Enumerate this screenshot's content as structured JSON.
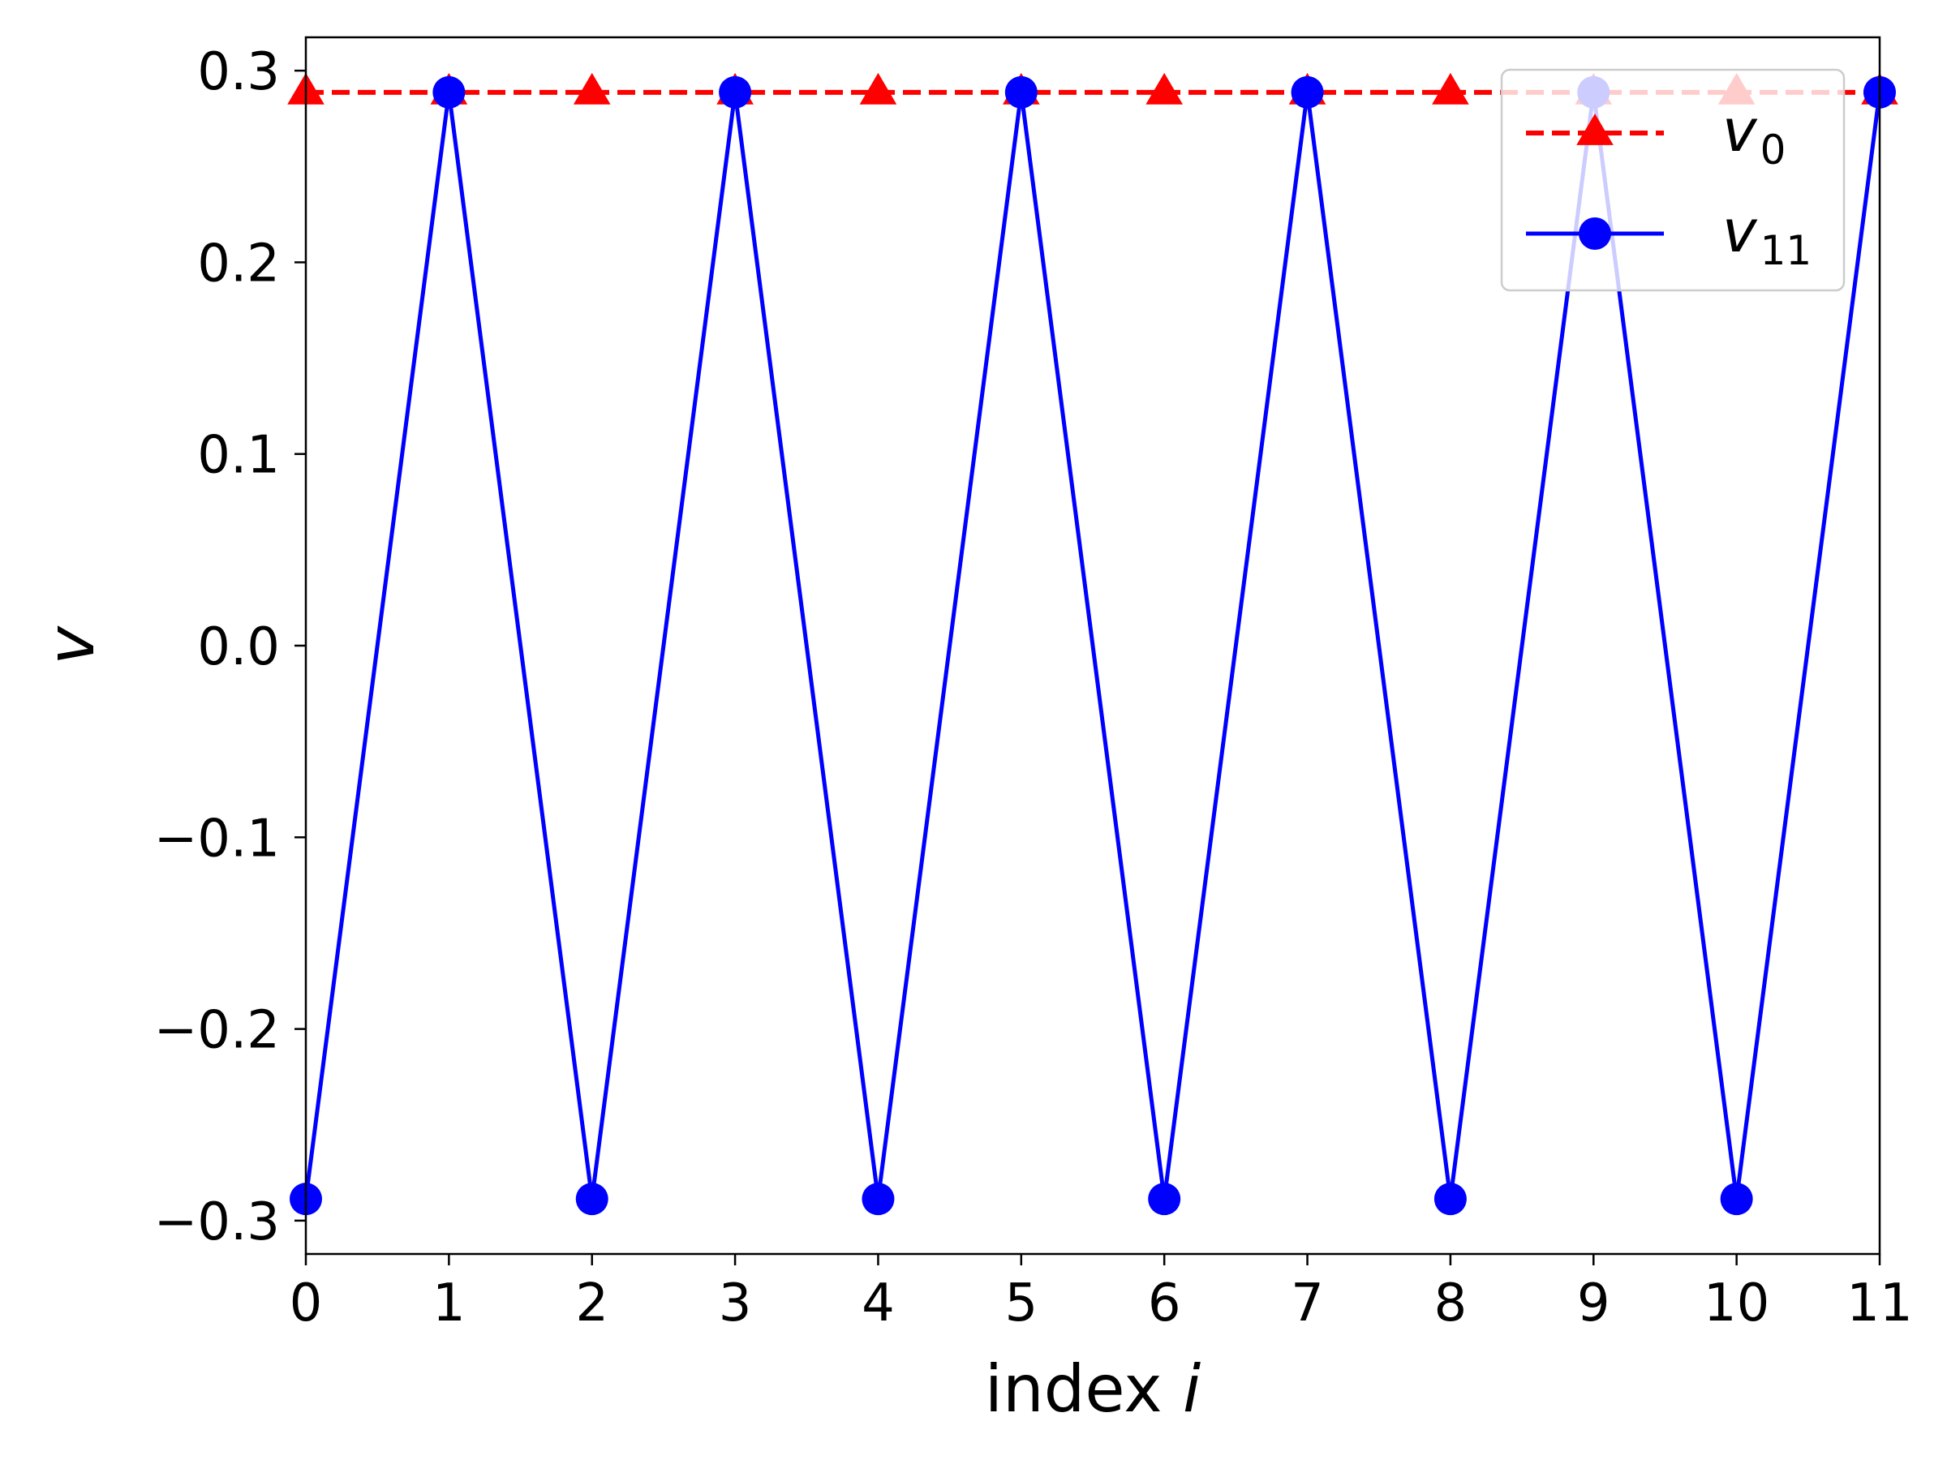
{
  "chart_data": {
    "type": "line",
    "xlabel": "index",
    "xlabel_var": "i",
    "ylabel": "v",
    "xlim": [
      0,
      11
    ],
    "ylim": [
      -0.3174,
      0.3174
    ],
    "xticks": [
      0,
      1,
      2,
      3,
      4,
      5,
      6,
      7,
      8,
      9,
      10,
      11
    ],
    "yticks": [
      -0.3,
      -0.2,
      -0.1,
      0.0,
      0.1,
      0.2,
      0.3
    ],
    "ytick_labels": [
      "−0.3",
      "−0.2",
      "−0.1",
      "0.0",
      "0.1",
      "0.2",
      "0.3"
    ],
    "grid": false,
    "legend_position": "top-right",
    "series": [
      {
        "name": "v",
        "name_sub": "0",
        "color": "#ff0000",
        "line_style": "dashed",
        "marker": "triangle",
        "x": [
          0,
          1,
          2,
          3,
          4,
          5,
          6,
          7,
          8,
          9,
          10,
          11
        ],
        "values": [
          0.2887,
          0.2887,
          0.2887,
          0.2887,
          0.2887,
          0.2887,
          0.2887,
          0.2887,
          0.2887,
          0.2887,
          0.2887,
          0.2887
        ]
      },
      {
        "name": "v",
        "name_sub": "11",
        "color": "#0000ff",
        "line_style": "solid",
        "marker": "circle",
        "x": [
          0,
          1,
          2,
          3,
          4,
          5,
          6,
          7,
          8,
          9,
          10,
          11
        ],
        "values": [
          -0.2887,
          0.2887,
          -0.2887,
          0.2887,
          -0.2887,
          0.2887,
          -0.2887,
          0.2887,
          -0.2887,
          0.2887,
          -0.2887,
          0.2887
        ]
      }
    ]
  }
}
